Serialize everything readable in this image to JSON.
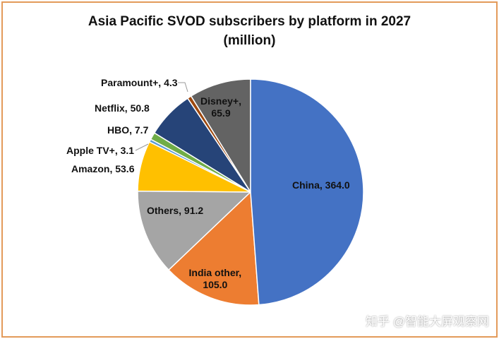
{
  "chart_data": {
    "type": "pie",
    "title": "Asia Pacific SVOD subscribers by platform in 2027",
    "subtitle": "(million)",
    "values": [
      364.0,
      105.0,
      91.2,
      53.6,
      3.1,
      7.7,
      50.8,
      4.3,
      65.9
    ],
    "value_labels": [
      "China, 364.0",
      "India other,\n105.0",
      "Others, 91.2",
      "Amazon, 53.6",
      "Apple TV+, 3.1",
      "HBO, 7.7",
      "Netflix, 50.8",
      "Paramount+, 4.3",
      "Disney+,\n65.9"
    ],
    "colors": [
      "#4472c4",
      "#ed7d31",
      "#a5a5a5",
      "#ffc000",
      "#5b9bd5",
      "#70ad47",
      "#264478",
      "#9e480e",
      "#636363"
    ]
  },
  "watermark": "知乎 @智能大屏观察网"
}
